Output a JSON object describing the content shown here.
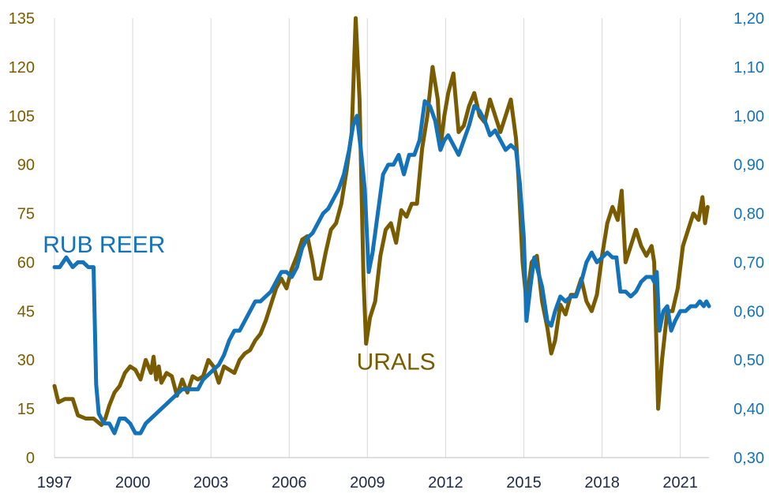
{
  "chart_data": {
    "type": "line",
    "xlim": [
      1997.0,
      2022.1
    ],
    "x_ticks": [
      "1997",
      "2000",
      "2003",
      "2006",
      "2009",
      "2012",
      "2015",
      "2018",
      "2021"
    ],
    "x_tick_values": [
      1997,
      2000,
      2003,
      2006,
      2009,
      2012,
      2015,
      2018,
      2021
    ],
    "y_left": {
      "lim": [
        0,
        135
      ],
      "ticks": [
        "0",
        "15",
        "30",
        "45",
        "60",
        "75",
        "90",
        "105",
        "120",
        "135"
      ],
      "tick_values": [
        0,
        15,
        30,
        45,
        60,
        75,
        90,
        105,
        120,
        135
      ]
    },
    "y_right": {
      "lim": [
        0.3,
        1.2
      ],
      "ticks": [
        "0,30",
        "0,40",
        "0,50",
        "0,60",
        "0,70",
        "0,80",
        "0,90",
        "1,00",
        "1,10",
        "1,20"
      ],
      "tick_values": [
        0.3,
        0.4,
        0.5,
        0.6,
        0.7,
        0.8,
        0.9,
        1.0,
        1.1,
        1.2
      ]
    },
    "grid": "vertical",
    "legend": "inline-labels",
    "series": [
      {
        "name": "URALS",
        "axis": "left",
        "color": "#7a5c00",
        "x": [
          1997.0,
          1997.15,
          1997.4,
          1997.7,
          1997.9,
          1998.2,
          1998.5,
          1998.8,
          1998.95,
          1999.1,
          1999.3,
          1999.5,
          1999.7,
          1999.9,
          2000.1,
          2000.3,
          2000.5,
          2000.7,
          2000.8,
          2000.9,
          2001.0,
          2001.1,
          2001.3,
          2001.5,
          2001.7,
          2001.9,
          2002.1,
          2002.3,
          2002.5,
          2002.7,
          2002.9,
          2003.1,
          2003.3,
          2003.5,
          2003.7,
          2003.9,
          2004.1,
          2004.3,
          2004.5,
          2004.7,
          2004.9,
          2005.1,
          2005.3,
          2005.5,
          2005.7,
          2005.9,
          2006.1,
          2006.3,
          2006.5,
          2006.7,
          2006.9,
          2007.0,
          2007.2,
          2007.4,
          2007.6,
          2007.8,
          2008.0,
          2008.2,
          2008.4,
          2008.55,
          2008.7,
          2008.85,
          2008.95,
          2009.1,
          2009.3,
          2009.5,
          2009.7,
          2009.9,
          2010.1,
          2010.3,
          2010.5,
          2010.7,
          2010.9,
          2011.1,
          2011.3,
          2011.5,
          2011.7,
          2011.8,
          2011.95,
          2012.1,
          2012.3,
          2012.5,
          2012.7,
          2012.9,
          2013.1,
          2013.3,
          2013.5,
          2013.7,
          2013.9,
          2014.1,
          2014.3,
          2014.5,
          2014.7,
          2014.8,
          2014.95,
          2015.1,
          2015.3,
          2015.5,
          2015.7,
          2015.9,
          2016.05,
          2016.2,
          2016.4,
          2016.6,
          2016.8,
          2017.0,
          2017.2,
          2017.4,
          2017.6,
          2017.8,
          2018.0,
          2018.2,
          2018.4,
          2018.6,
          2018.75,
          2018.9,
          2019.1,
          2019.3,
          2019.5,
          2019.7,
          2019.9,
          2020.0,
          2020.15,
          2020.3,
          2020.5,
          2020.7,
          2020.9,
          2021.1,
          2021.3,
          2021.5,
          2021.7,
          2021.85,
          2021.95,
          2022.05
        ],
        "values": [
          22,
          17,
          18,
          18,
          13,
          12,
          12,
          10,
          12,
          16,
          20,
          22,
          26,
          28,
          27,
          24,
          30,
          26,
          31,
          24,
          28,
          23,
          26,
          25,
          19,
          24,
          20,
          25,
          24,
          25,
          30,
          28,
          23,
          28,
          27,
          26,
          30,
          32,
          33,
          36,
          38,
          42,
          47,
          52,
          55,
          52,
          58,
          62,
          67,
          68,
          60,
          55,
          55,
          63,
          70,
          72,
          78,
          88,
          100,
          135,
          110,
          55,
          35,
          43,
          48,
          62,
          70,
          72,
          66,
          76,
          74,
          78,
          78,
          95,
          105,
          120,
          110,
          95,
          105,
          112,
          118,
          100,
          102,
          108,
          112,
          105,
          103,
          110,
          105,
          100,
          105,
          110,
          98,
          85,
          60,
          48,
          60,
          62,
          48,
          40,
          32,
          36,
          47,
          44,
          50,
          50,
          55,
          48,
          45,
          50,
          62,
          72,
          77,
          73,
          82,
          60,
          65,
          70,
          65,
          62,
          65,
          60,
          15,
          30,
          45,
          45,
          52,
          65,
          70,
          75,
          73,
          80,
          72,
          77
        ]
      },
      {
        "name": "RUB REER",
        "axis": "right",
        "color": "#1473b8",
        "x": [
          1997.0,
          1997.2,
          1997.45,
          1997.7,
          1997.9,
          1998.1,
          1998.3,
          1998.5,
          1998.6,
          1998.7,
          1998.9,
          1999.1,
          1999.3,
          1999.5,
          1999.7,
          1999.9,
          2000.1,
          2000.3,
          2000.5,
          2000.7,
          2000.9,
          2001.1,
          2001.3,
          2001.5,
          2001.7,
          2001.9,
          2002.1,
          2002.3,
          2002.5,
          2002.7,
          2002.9,
          2003.1,
          2003.3,
          2003.5,
          2003.7,
          2003.9,
          2004.1,
          2004.3,
          2004.5,
          2004.7,
          2004.9,
          2005.1,
          2005.3,
          2005.5,
          2005.7,
          2005.9,
          2006.1,
          2006.3,
          2006.5,
          2006.7,
          2006.9,
          2007.1,
          2007.3,
          2007.5,
          2007.7,
          2007.9,
          2008.1,
          2008.3,
          2008.45,
          2008.6,
          2008.75,
          2008.9,
          2009.05,
          2009.2,
          2009.4,
          2009.6,
          2009.8,
          2010.0,
          2010.2,
          2010.4,
          2010.6,
          2010.8,
          2011.0,
          2011.2,
          2011.4,
          2011.6,
          2011.8,
          2011.95,
          2012.1,
          2012.3,
          2012.5,
          2012.7,
          2012.9,
          2013.1,
          2013.3,
          2013.5,
          2013.7,
          2013.9,
          2014.1,
          2014.3,
          2014.5,
          2014.7,
          2014.85,
          2015.0,
          2015.1,
          2015.25,
          2015.4,
          2015.55,
          2015.7,
          2015.9,
          2016.05,
          2016.2,
          2016.4,
          2016.6,
          2016.8,
          2017.0,
          2017.2,
          2017.4,
          2017.6,
          2017.8,
          2018.0,
          2018.2,
          2018.4,
          2018.55,
          2018.7,
          2018.9,
          2019.1,
          2019.3,
          2019.5,
          2019.7,
          2019.9,
          2020.0,
          2020.1,
          2020.2,
          2020.35,
          2020.5,
          2020.65,
          2020.8,
          2021.0,
          2021.2,
          2021.4,
          2021.6,
          2021.75,
          2021.9,
          2022.0,
          2022.1
        ],
        "values": [
          0.69,
          0.69,
          0.71,
          0.69,
          0.7,
          0.7,
          0.69,
          0.69,
          0.45,
          0.39,
          0.37,
          0.37,
          0.35,
          0.38,
          0.38,
          0.37,
          0.35,
          0.35,
          0.37,
          0.38,
          0.39,
          0.4,
          0.41,
          0.42,
          0.43,
          0.44,
          0.44,
          0.44,
          0.44,
          0.46,
          0.47,
          0.48,
          0.49,
          0.51,
          0.54,
          0.56,
          0.56,
          0.58,
          0.6,
          0.62,
          0.62,
          0.63,
          0.64,
          0.66,
          0.68,
          0.68,
          0.67,
          0.69,
          0.73,
          0.75,
          0.76,
          0.78,
          0.8,
          0.81,
          0.83,
          0.85,
          0.88,
          0.93,
          0.98,
          1.0,
          0.93,
          0.85,
          0.68,
          0.72,
          0.8,
          0.88,
          0.9,
          0.9,
          0.92,
          0.88,
          0.92,
          0.92,
          0.95,
          1.03,
          1.02,
          0.99,
          0.93,
          0.95,
          0.96,
          0.94,
          0.92,
          0.95,
          0.98,
          1.02,
          1.01,
          0.99,
          0.96,
          0.97,
          0.95,
          0.93,
          0.94,
          0.93,
          0.86,
          0.75,
          0.58,
          0.65,
          0.71,
          0.68,
          0.65,
          0.58,
          0.57,
          0.6,
          0.63,
          0.62,
          0.63,
          0.63,
          0.66,
          0.7,
          0.72,
          0.7,
          0.71,
          0.72,
          0.71,
          0.71,
          0.64,
          0.64,
          0.63,
          0.64,
          0.66,
          0.67,
          0.67,
          0.66,
          0.68,
          0.56,
          0.6,
          0.61,
          0.56,
          0.58,
          0.6,
          0.6,
          0.61,
          0.61,
          0.62,
          0.61,
          0.62,
          0.61
        ]
      }
    ],
    "annotations": [
      {
        "text": "RUB REER",
        "color": "#1473b8",
        "x": 1998.9,
        "axis": "left",
        "y": 63
      },
      {
        "text": "URALS",
        "color": "#7a5c00",
        "x": 2010.1,
        "axis": "left",
        "y": 27
      }
    ]
  }
}
